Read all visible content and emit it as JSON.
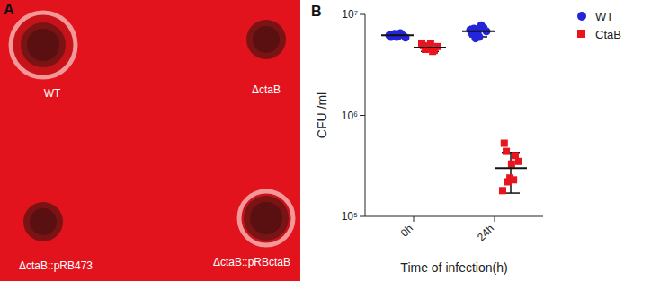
{
  "panel_a": {
    "panel_label": "A",
    "labels": [
      "WT",
      "ΔctaB",
      "ΔctaB::pRB473",
      "ΔctaB::pRBctaB"
    ]
  },
  "chart_data": {
    "panel_label": "B",
    "type": "scatter",
    "categories": [
      "0h",
      "24h"
    ],
    "x_label": "Time of infection(h)",
    "y_label": "CFU /ml",
    "log": "y",
    "ylim": [
      100000,
      10000000
    ],
    "yticks": [
      {
        "value": 100000,
        "label": "10⁵"
      },
      {
        "value": 1000000,
        "label": "10⁶"
      },
      {
        "value": 10000000,
        "label": "10⁷"
      }
    ],
    "legend": "upper right",
    "series": [
      {
        "name": "WT",
        "color": "#2424d8",
        "marker": "circle",
        "values": [
          [
            6000000,
            6300000,
            6100000,
            6500000,
            5900000,
            6200000,
            6400000,
            6000000,
            6300000
          ],
          [
            6500000,
            7200000,
            6000000,
            7800000,
            6800000,
            7000000,
            5800000,
            6600000,
            7400000
          ]
        ],
        "mean": [
          6200000,
          6800000
        ],
        "sd": [
          300000,
          800000
        ]
      },
      {
        "name": "CtaB",
        "color": "#e8141e",
        "marker": "square",
        "values": [
          [
            4900000,
            4500000,
            5100000,
            4300000,
            4800000,
            5200000,
            4600000,
            4700000,
            4400000
          ],
          [
            530000,
            440000,
            330000,
            230000,
            350000,
            180000,
            220000,
            240000,
            400000
          ]
        ],
        "mean": [
          4700000,
          300000
        ],
        "sd": [
          400000,
          130000
        ]
      }
    ]
  }
}
